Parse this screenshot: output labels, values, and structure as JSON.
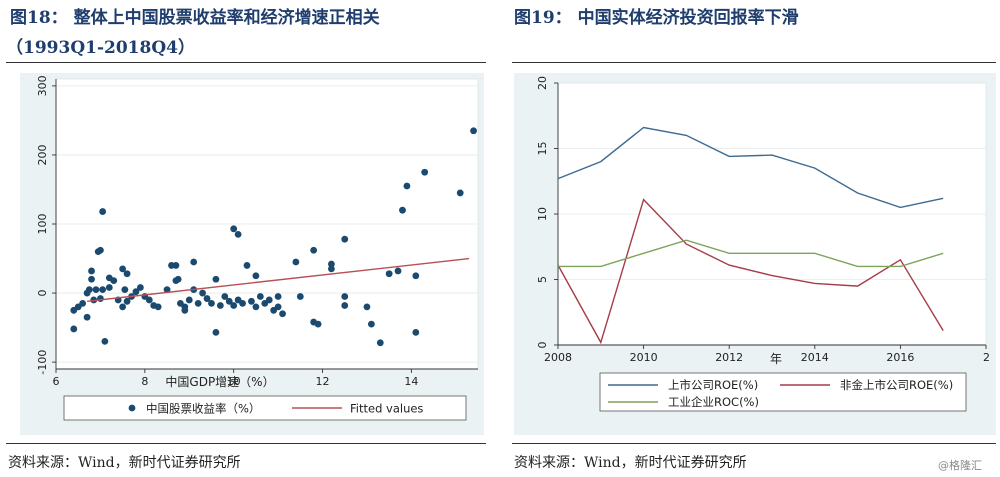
{
  "left_title_line1": "图18：  整体上中国股票收益率和经济增速正相关",
  "left_title_line2": "（1993Q1-2018Q4）",
  "right_title": "图19：   中国实体经济投资回报率下滑",
  "left_source": "资料来源：Wind，新时代证券研究所",
  "right_source": "资料来源：Wind，新时代证券研究所",
  "watermark": "@格隆汇",
  "colors": {
    "title": "#1f3e6e",
    "panel": "#eaf2f3",
    "dot": "#1c4a6e",
    "fit": "#b85054",
    "listed": "#3d6a91",
    "nonfin": "#a63c48",
    "industrial": "#7ea35a"
  },
  "chart_data": [
    {
      "type": "scatter",
      "title": "",
      "xlabel": "中国GDP增速（%）",
      "ylabel": "",
      "xlim": [
        6,
        15.5
      ],
      "ylim": [
        -110,
        310
      ],
      "xticks": [
        "6",
        "8",
        "10",
        "12",
        "14"
      ],
      "yticks": [
        "-100",
        "0",
        "100",
        "200",
        "300"
      ],
      "legend": [
        "中国股票收益率（%）",
        "Fitted values"
      ],
      "fitted_line": {
        "x": [
          6.7,
          15.3
        ],
        "y": [
          -12,
          50
        ]
      },
      "points": [
        [
          6.4,
          -52
        ],
        [
          6.4,
          -25
        ],
        [
          6.5,
          -20
        ],
        [
          6.6,
          -15
        ],
        [
          6.7,
          -35
        ],
        [
          6.7,
          0
        ],
        [
          6.75,
          5
        ],
        [
          6.8,
          20
        ],
        [
          6.8,
          32
        ],
        [
          6.85,
          -10
        ],
        [
          6.9,
          5
        ],
        [
          6.95,
          60
        ],
        [
          7.0,
          62
        ],
        [
          7.0,
          -8
        ],
        [
          7.05,
          118
        ],
        [
          7.05,
          5
        ],
        [
          7.1,
          -70
        ],
        [
          7.2,
          22
        ],
        [
          7.2,
          8
        ],
        [
          7.3,
          18
        ],
        [
          7.4,
          -10
        ],
        [
          7.5,
          35
        ],
        [
          7.5,
          -20
        ],
        [
          7.55,
          5
        ],
        [
          7.6,
          28
        ],
        [
          7.6,
          -12
        ],
        [
          7.7,
          -5
        ],
        [
          7.8,
          2
        ],
        [
          7.9,
          8
        ],
        [
          8.0,
          -5
        ],
        [
          8.1,
          -10
        ],
        [
          8.2,
          -18
        ],
        [
          8.3,
          -20
        ],
        [
          8.5,
          5
        ],
        [
          8.6,
          40
        ],
        [
          8.7,
          18
        ],
        [
          8.7,
          40
        ],
        [
          8.75,
          20
        ],
        [
          8.8,
          -15
        ],
        [
          8.9,
          -20
        ],
        [
          8.9,
          -25
        ],
        [
          9.0,
          -10
        ],
        [
          9.1,
          45
        ],
        [
          9.1,
          5
        ],
        [
          9.2,
          -15
        ],
        [
          9.3,
          0
        ],
        [
          9.4,
          -8
        ],
        [
          9.5,
          -15
        ],
        [
          9.6,
          20
        ],
        [
          9.6,
          -57
        ],
        [
          9.7,
          -18
        ],
        [
          9.8,
          -5
        ],
        [
          9.9,
          -12
        ],
        [
          10.0,
          -18
        ],
        [
          10.0,
          93
        ],
        [
          10.1,
          85
        ],
        [
          10.1,
          -10
        ],
        [
          10.2,
          -15
        ],
        [
          10.3,
          40
        ],
        [
          10.4,
          -12
        ],
        [
          10.5,
          25
        ],
        [
          10.5,
          -20
        ],
        [
          10.6,
          -5
        ],
        [
          10.7,
          -15
        ],
        [
          10.8,
          -10
        ],
        [
          10.9,
          -25
        ],
        [
          11.0,
          -5
        ],
        [
          11.0,
          -20
        ],
        [
          11.1,
          -30
        ],
        [
          11.4,
          45
        ],
        [
          11.5,
          -5
        ],
        [
          11.8,
          62
        ],
        [
          11.8,
          -42
        ],
        [
          11.9,
          -45
        ],
        [
          12.2,
          35
        ],
        [
          12.2,
          42
        ],
        [
          12.5,
          -5
        ],
        [
          12.5,
          78
        ],
        [
          12.5,
          -18
        ],
        [
          13.0,
          -20
        ],
        [
          13.1,
          -45
        ],
        [
          13.3,
          -72
        ],
        [
          13.5,
          28
        ],
        [
          13.7,
          32
        ],
        [
          13.8,
          120
        ],
        [
          13.9,
          155
        ],
        [
          14.1,
          25
        ],
        [
          14.1,
          -57
        ],
        [
          14.3,
          175
        ],
        [
          15.1,
          145
        ],
        [
          15.4,
          235
        ]
      ]
    },
    {
      "type": "line",
      "title": "",
      "xlabel": "年",
      "ylabel": "",
      "x": [
        2008,
        2009,
        2010,
        2011,
        2012,
        2013,
        2014,
        2015,
        2016,
        2017
      ],
      "xlim": [
        2008,
        2018
      ],
      "ylim": [
        0,
        20
      ],
      "xticks": [
        "2008",
        "2010",
        "2012",
        "2014",
        "2016",
        "2"
      ],
      "yticks": [
        "0",
        "5",
        "10",
        "15",
        "20"
      ],
      "legend_position": "bottom",
      "series": [
        {
          "name": "上市公司ROE(%)",
          "values": [
            12.7,
            14.0,
            16.6,
            16.0,
            14.4,
            14.5,
            13.5,
            11.6,
            10.5,
            11.2
          ]
        },
        {
          "name": "非金上市公司ROE(%)",
          "values": [
            6.1,
            0.2,
            11.1,
            7.7,
            6.1,
            5.3,
            4.7,
            4.5,
            6.5,
            1.1
          ]
        },
        {
          "name": "工业企业ROC(%)",
          "values": [
            6.0,
            6.0,
            7.0,
            8.0,
            7.0,
            7.0,
            7.0,
            6.0,
            6.0,
            7.0
          ]
        }
      ]
    }
  ]
}
